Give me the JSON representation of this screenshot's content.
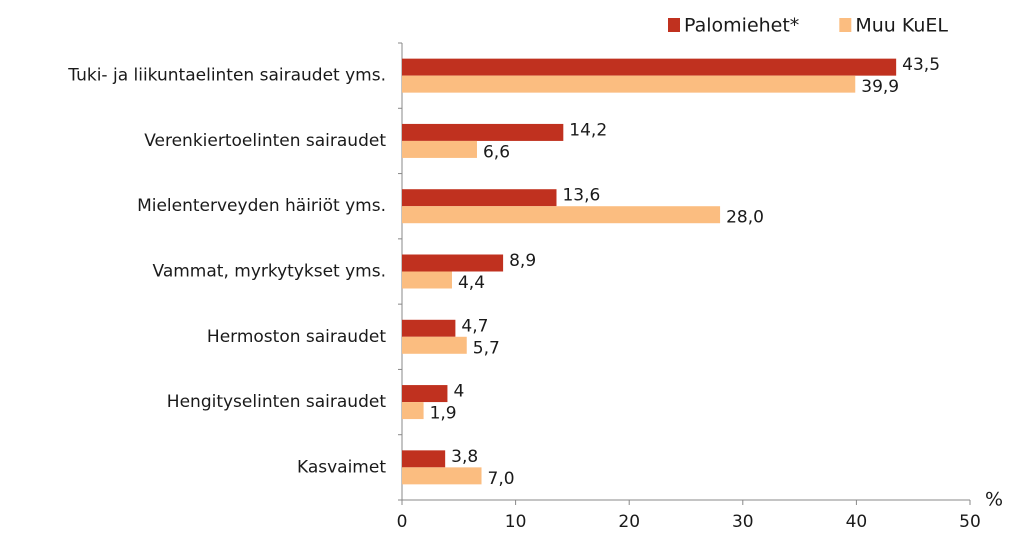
{
  "chart_data": {
    "type": "bar",
    "orientation": "horizontal",
    "categories": [
      "Tuki- ja liikuntaelinten sairaudet yms.",
      "Verenkiertoelinten sairaudet",
      "Mielenterveyden häiriöt yms.",
      "Vammat, myrkytykset yms.",
      "Hermoston sairaudet",
      "Hengityselinten sairaudet",
      "Kasvaimet"
    ],
    "series": [
      {
        "name": "Palomiehet*",
        "color": "#c0311f",
        "values": [
          43.5,
          14.2,
          13.6,
          8.9,
          4.7,
          4,
          3.8
        ],
        "value_labels": [
          "43,5",
          "14,2",
          "13,6",
          "8,9",
          "4,7",
          "4",
          "3,8"
        ]
      },
      {
        "name": "Muu KuEL",
        "color": "#fbbd80",
        "values": [
          39.9,
          6.6,
          28.0,
          4.4,
          5.7,
          1.9,
          7.0
        ],
        "value_labels": [
          "39,9",
          "6,6",
          "28,0",
          "4,4",
          "5,7",
          "1,9",
          "7,0"
        ]
      }
    ],
    "xlim": [
      0,
      50
    ],
    "xticks": [
      0,
      10,
      20,
      30,
      40,
      50
    ],
    "x_axis_label": "%",
    "legend": "top-right",
    "grid": false
  }
}
